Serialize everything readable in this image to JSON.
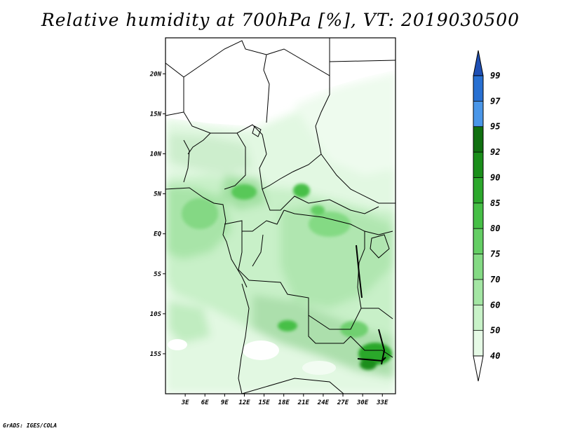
{
  "title": "Relative humidity at 700hPa [%], VT: 2019030500",
  "credit": "GrADS: IGES/COLA",
  "map": {
    "lon_range": [
      0,
      35
    ],
    "lat_range": [
      -20,
      24.5
    ],
    "lon_ticks": [
      {
        "value": 3,
        "label": "3E"
      },
      {
        "value": 6,
        "label": "6E"
      },
      {
        "value": 9,
        "label": "9E"
      },
      {
        "value": 12,
        "label": "12E"
      },
      {
        "value": 15,
        "label": "15E"
      },
      {
        "value": 18,
        "label": "18E"
      },
      {
        "value": 21,
        "label": "21E"
      },
      {
        "value": 24,
        "label": "24E"
      },
      {
        "value": 27,
        "label": "27E"
      },
      {
        "value": 30,
        "label": "30E"
      },
      {
        "value": 33,
        "label": "33E"
      }
    ],
    "lat_ticks": [
      {
        "value": 20,
        "label": "20N"
      },
      {
        "value": 15,
        "label": "15N"
      },
      {
        "value": 10,
        "label": "10N"
      },
      {
        "value": 5,
        "label": "5N"
      },
      {
        "value": 0,
        "label": "EQ"
      },
      {
        "value": -5,
        "label": "5S"
      },
      {
        "value": -10,
        "label": "10S"
      },
      {
        "value": -15,
        "label": "15S"
      }
    ]
  },
  "colorbar": {
    "levels": [
      "40",
      "50",
      "60",
      "70",
      "75",
      "80",
      "85",
      "90",
      "92",
      "95",
      "97",
      "99"
    ],
    "colors": [
      "#ffffff",
      "#e6fae6",
      "#c8f2c8",
      "#a4e6a4",
      "#84da84",
      "#64ce64",
      "#46bf46",
      "#2ca82c",
      "#1a8e1a",
      "#107010",
      "#4a96e8",
      "#2870d2",
      "#1e4fb4"
    ]
  },
  "colors": {
    "frame": "#000000",
    "border_lines": "#000000"
  }
}
